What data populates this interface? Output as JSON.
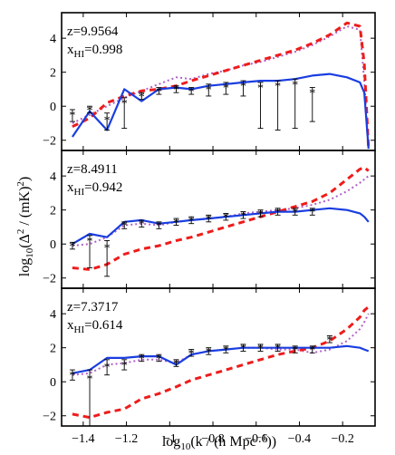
{
  "chart_data": {
    "type": "line",
    "xlabel": "log10(k / (h Mpc^-1))",
    "ylabel": "log10(Δ^2 / (mK)^2)",
    "xlim": [
      -1.5,
      -0.05
    ],
    "ylim": [
      -2.6,
      5.5
    ],
    "xticks": [
      -1.4,
      -1.2,
      -1,
      -0.8,
      -0.6,
      -0.4,
      -0.2
    ],
    "xtick_labels": [
      "−1.4",
      "−1.2",
      "−1",
      "−0.8",
      "−0.6",
      "−0.4",
      "−0.2"
    ],
    "yticks": [
      -2,
      0,
      2,
      4
    ],
    "ytick_labels": [
      "−2",
      "0",
      "2",
      "4"
    ],
    "grid": false,
    "colors": {
      "blue": "#1a3ee0",
      "red": "#ee1c1c",
      "purple": "#b060c8",
      "black": "#000000"
    },
    "panels": [
      {
        "z_label": "z=9.9564",
        "x_label": "x",
        "x_sub": "HI",
        "x_value": "=0.998",
        "series": [
          {
            "style": "solid-blue",
            "x": [
              -1.45,
              -1.37,
              -1.29,
              -1.21,
              -1.13,
              -1.05,
              -0.97,
              -0.9,
              -0.82,
              -0.74,
              -0.66,
              -0.58,
              -0.5,
              -0.42,
              -0.34,
              -0.26,
              -0.18,
              -0.12,
              -0.1,
              -0.08
            ],
            "y": [
              -1.8,
              -0.3,
              -1.4,
              1.0,
              0.3,
              1.0,
              1.1,
              1.0,
              1.2,
              1.3,
              1.4,
              1.5,
              1.5,
              1.6,
              1.8,
              1.9,
              1.7,
              1.4,
              0.8,
              -2.5
            ]
          },
          {
            "style": "dashed-red",
            "x": [
              -1.45,
              -1.37,
              -1.29,
              -1.21,
              -1.13,
              -1.05,
              -0.97,
              -0.9,
              -0.82,
              -0.74,
              -0.66,
              -0.58,
              -0.5,
              -0.42,
              -0.34,
              -0.26,
              -0.18,
              -0.12,
              -0.1,
              -0.08
            ],
            "y": [
              -1.2,
              -0.7,
              0.2,
              0.6,
              0.9,
              1.0,
              1.2,
              1.5,
              1.8,
              2.1,
              2.4,
              2.7,
              3.0,
              3.3,
              3.7,
              4.2,
              4.9,
              4.7,
              2.5,
              -2.5
            ]
          },
          {
            "style": "dotted-purple",
            "x": [
              -1.45,
              -1.37,
              -1.29,
              -1.21,
              -1.13,
              -1.05,
              -0.97,
              -0.9,
              -0.82,
              -0.74,
              -0.66,
              -0.58,
              -0.5,
              -0.42,
              -0.34,
              -0.26,
              -0.18,
              -0.12,
              -0.1,
              -0.08
            ],
            "y": [
              -1.0,
              -0.5,
              0.0,
              0.5,
              0.9,
              1.3,
              1.7,
              1.6,
              1.9,
              2.1,
              2.4,
              2.6,
              2.9,
              3.2,
              3.6,
              4.1,
              4.7,
              4.5,
              1.5,
              -2.5
            ]
          },
          {
            "style": "points",
            "x": [
              -1.45,
              -1.37,
              -1.29,
              -1.21,
              -1.13,
              -1.05,
              -0.97,
              -0.9,
              -0.82,
              -0.74,
              -0.66,
              -0.58,
              -0.5,
              -0.42,
              -0.34
            ],
            "y": [
              -0.5,
              -0.2,
              -0.8,
              0.2,
              0.6,
              0.9,
              1.0,
              0.9,
              1.0,
              1.1,
              1.2,
              1.1,
              1.2,
              1.3,
              0.8
            ],
            "err_low": [
              0.4,
              0.2,
              0.6,
              1.5,
              0.2,
              0.2,
              0.2,
              0.2,
              0.4,
              0.4,
              0.6,
              2.4,
              2.6,
              2.6,
              1.7
            ],
            "err_high": [
              0.3,
              0.2,
              0.4,
              0.3,
              0.2,
              0.2,
              0.2,
              0.2,
              0.3,
              0.3,
              0.3,
              0.3,
              0.3,
              0.3,
              0.3
            ]
          }
        ]
      },
      {
        "z_label": "z=8.4911",
        "x_label": "x",
        "x_sub": "HI",
        "x_value": "=0.942",
        "series": [
          {
            "style": "solid-blue",
            "x": [
              -1.45,
              -1.37,
              -1.29,
              -1.21,
              -1.13,
              -1.05,
              -0.97,
              -0.9,
              -0.82,
              -0.74,
              -0.66,
              -0.58,
              -0.5,
              -0.42,
              -0.34,
              -0.26,
              -0.18,
              -0.12,
              -0.1,
              -0.08
            ],
            "y": [
              0.0,
              0.6,
              0.4,
              1.3,
              1.4,
              1.2,
              1.3,
              1.4,
              1.5,
              1.6,
              1.7,
              1.8,
              1.9,
              1.9,
              2.0,
              2.1,
              2.0,
              1.8,
              1.6,
              1.3
            ]
          },
          {
            "style": "dashed-red",
            "x": [
              -1.45,
              -1.37,
              -1.29,
              -1.21,
              -1.13,
              -1.05,
              -0.97,
              -0.9,
              -0.82,
              -0.74,
              -0.66,
              -0.58,
              -0.5,
              -0.42,
              -0.34,
              -0.26,
              -0.18,
              -0.12,
              -0.1,
              -0.08
            ],
            "y": [
              -1.4,
              -1.5,
              -1.2,
              -0.6,
              -0.3,
              -0.1,
              0.2,
              0.4,
              0.7,
              1.0,
              1.3,
              1.6,
              1.9,
              2.2,
              2.5,
              3.0,
              3.8,
              4.4,
              4.5,
              4.3
            ]
          },
          {
            "style": "dotted-purple",
            "x": [
              -1.45,
              -1.37,
              -1.29,
              -1.21,
              -1.13,
              -1.05,
              -0.97,
              -0.9,
              -0.82,
              -0.74,
              -0.66,
              -0.58,
              -0.5,
              -0.42,
              -0.34,
              -0.26,
              -0.18,
              -0.12,
              -0.1,
              -0.08
            ],
            "y": [
              -0.1,
              0.0,
              0.4,
              1.1,
              1.2,
              1.1,
              1.3,
              1.4,
              1.5,
              1.6,
              1.8,
              1.9,
              2.0,
              2.1,
              2.3,
              2.6,
              3.1,
              3.6,
              3.8,
              4.0
            ]
          },
          {
            "style": "points",
            "x": [
              -1.45,
              -1.37,
              -1.29,
              -1.21,
              -1.13,
              -1.05,
              -0.97,
              -0.9,
              -0.82,
              -0.74,
              -0.66,
              -0.58,
              -0.5,
              -0.42,
              -0.34
            ],
            "y": [
              -0.1,
              0.2,
              -0.2,
              1.1,
              1.2,
              1.1,
              1.3,
              1.4,
              1.5,
              1.6,
              1.7,
              1.8,
              1.9,
              1.9,
              1.9
            ],
            "err_low": [
              0.2,
              1.6,
              1.7,
              0.2,
              0.2,
              0.2,
              0.2,
              0.2,
              0.2,
              0.2,
              0.2,
              0.2,
              0.2,
              0.2,
              0.2
            ],
            "err_high": [
              0.2,
              0.3,
              0.4,
              0.2,
              0.2,
              0.2,
              0.2,
              0.2,
              0.2,
              0.2,
              0.2,
              0.2,
              0.2,
              0.2,
              0.2
            ]
          }
        ]
      },
      {
        "z_label": "z=7.3717",
        "x_label": "x",
        "x_sub": "HI",
        "x_value": "=0.614",
        "series": [
          {
            "style": "solid-blue",
            "x": [
              -1.45,
              -1.37,
              -1.29,
              -1.21,
              -1.13,
              -1.05,
              -0.97,
              -0.9,
              -0.82,
              -0.74,
              -0.66,
              -0.58,
              -0.5,
              -0.42,
              -0.34,
              -0.26,
              -0.18,
              -0.12,
              -0.1,
              -0.08
            ],
            "y": [
              0.5,
              0.7,
              1.4,
              1.4,
              1.5,
              1.5,
              1.0,
              1.6,
              1.8,
              1.9,
              2.0,
              2.0,
              2.0,
              2.0,
              2.0,
              2.0,
              2.1,
              2.0,
              1.9,
              1.8
            ]
          },
          {
            "style": "dashed-red",
            "x": [
              -1.45,
              -1.37,
              -1.29,
              -1.21,
              -1.13,
              -1.05,
              -0.97,
              -0.9,
              -0.82,
              -0.74,
              -0.66,
              -0.58,
              -0.5,
              -0.42,
              -0.34,
              -0.26,
              -0.18,
              -0.12,
              -0.1,
              -0.08
            ],
            "y": [
              -1.9,
              -2.1,
              -1.8,
              -1.6,
              -1.0,
              -0.7,
              -0.3,
              0.1,
              0.4,
              0.7,
              1.0,
              1.3,
              1.6,
              1.8,
              2.0,
              2.4,
              3.1,
              3.8,
              4.2,
              4.4
            ]
          },
          {
            "style": "dotted-purple",
            "x": [
              -1.45,
              -1.37,
              -1.29,
              -1.21,
              -1.13,
              -1.05,
              -0.97,
              -0.9,
              -0.82,
              -0.74,
              -0.66,
              -0.58,
              -0.5,
              -0.42,
              -0.34,
              -0.26,
              -0.18,
              -0.12,
              -0.1,
              -0.08
            ],
            "y": [
              0.4,
              0.5,
              1.0,
              1.1,
              1.3,
              1.3,
              1.1,
              1.6,
              1.8,
              1.9,
              2.0,
              2.0,
              1.9,
              1.9,
              1.7,
              1.9,
              2.4,
              3.1,
              3.5,
              4.0
            ]
          },
          {
            "style": "points",
            "x": [
              -1.45,
              -1.37,
              -1.29,
              -1.21,
              -1.13,
              -1.05,
              -0.97,
              -0.9,
              -0.82,
              -0.74,
              -0.66,
              -0.58,
              -0.5,
              -0.42,
              -0.34,
              -0.26
            ],
            "y": [
              0.4,
              0.2,
              0.9,
              1.0,
              1.4,
              1.4,
              1.1,
              1.7,
              1.8,
              1.9,
              2.0,
              2.0,
              2.0,
              1.9,
              1.9,
              2.5
            ],
            "err_low": [
              0.3,
              2.8,
              0.5,
              0.3,
              0.2,
              0.2,
              0.2,
              0.2,
              0.2,
              0.2,
              0.2,
              0.2,
              0.2,
              0.2,
              0.2,
              0.2
            ],
            "err_high": [
              0.3,
              0.5,
              0.4,
              0.3,
              0.2,
              0.2,
              0.2,
              0.2,
              0.2,
              0.2,
              0.2,
              0.2,
              0.2,
              0.2,
              0.2,
              0.2
            ]
          }
        ]
      }
    ]
  }
}
